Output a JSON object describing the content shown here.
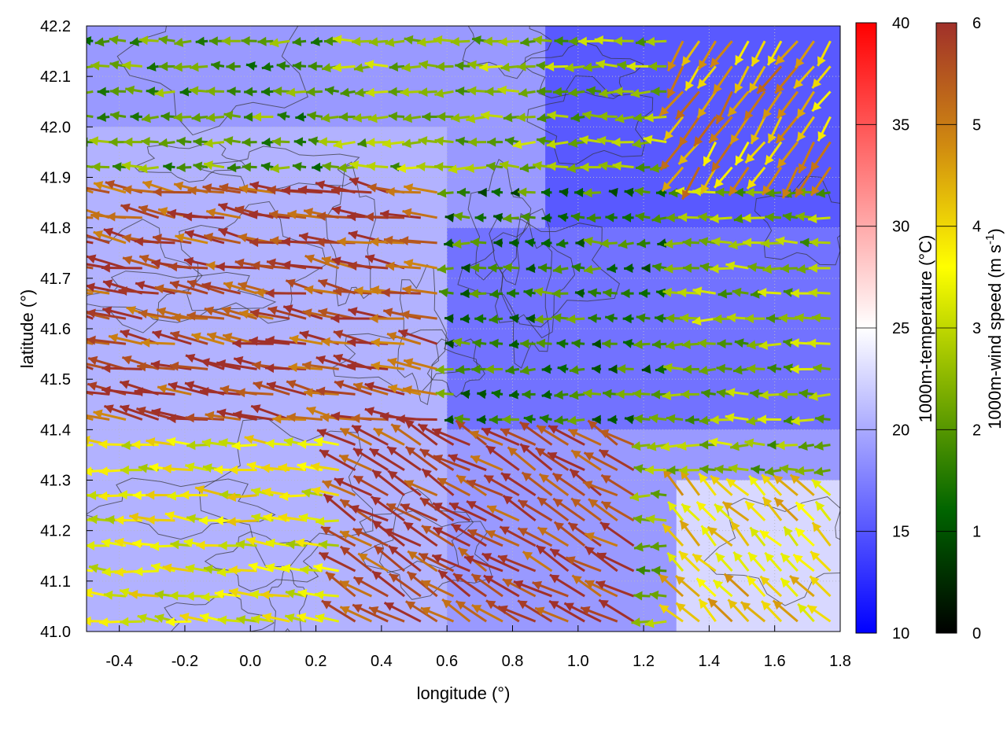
{
  "chart_data": {
    "type": "vector-field",
    "xlabel": "longitude (°)",
    "ylabel": "latitude (°)",
    "xlim": [
      -0.5,
      1.8
    ],
    "ylim": [
      41.0,
      42.2
    ],
    "xticks": [
      "-0.4",
      "-0.2",
      "0.0",
      "0.2",
      "0.4",
      "0.6",
      "0.8",
      "1.0",
      "1.2",
      "1.4",
      "1.6",
      "1.8"
    ],
    "xtick_values": [
      -0.4,
      -0.2,
      0.0,
      0.2,
      0.4,
      0.6,
      0.8,
      1.0,
      1.2,
      1.4,
      1.6,
      1.8
    ],
    "yticks": [
      "41.0",
      "41.1",
      "41.2",
      "41.3",
      "41.4",
      "41.5",
      "41.6",
      "41.7",
      "41.8",
      "41.9",
      "42.0",
      "42.1",
      "42.2"
    ],
    "ytick_values": [
      41.0,
      41.1,
      41.2,
      41.3,
      41.4,
      41.5,
      41.6,
      41.7,
      41.8,
      41.9,
      42.0,
      42.1,
      42.2
    ],
    "grid": true,
    "contours": "terrain elevation contours (unlabeled)",
    "colorbars": [
      {
        "label": "1000m-temperature (°C)",
        "range": [
          10,
          40
        ],
        "ticks": [
          "10",
          "15",
          "20",
          "25",
          "30",
          "35",
          "40"
        ],
        "tick_values": [
          10,
          15,
          20,
          25,
          30,
          35,
          40
        ],
        "colors": [
          "#0000ff",
          "#ffffff",
          "#ff0000"
        ]
      },
      {
        "label": "1000m-wind speed (m s",
        "label_sup": "-1",
        "label_end": ")",
        "range": [
          0,
          6
        ],
        "ticks": [
          "0",
          "1",
          "2",
          "3",
          "4",
          "5",
          "6"
        ],
        "tick_values": [
          0,
          1,
          2,
          3,
          4,
          5,
          6
        ],
        "colors": [
          "#000000",
          "#006400",
          "#80b000",
          "#ffff00",
          "#d08a10",
          "#a0302a"
        ]
      }
    ],
    "temperature_regions": [
      {
        "region": "north-east",
        "lon": [
          0.9,
          1.8
        ],
        "lat": [
          41.8,
          42.2
        ],
        "temp": 14
      },
      {
        "region": "central-east",
        "lon": [
          0.6,
          1.8
        ],
        "lat": [
          41.4,
          41.8
        ],
        "temp": 16
      },
      {
        "region": "west",
        "lon": [
          -0.5,
          0.6
        ],
        "lat": [
          41.0,
          42.0
        ],
        "temp": 21
      },
      {
        "region": "south-east",
        "lon": [
          1.3,
          1.8
        ],
        "lat": [
          41.0,
          41.3
        ],
        "temp": 24
      }
    ],
    "wind_regions": [
      {
        "region": "north-west",
        "lon": [
          -0.5,
          0.3
        ],
        "lat": [
          41.9,
          42.2
        ],
        "speed": 2.0,
        "direction_deg": 180
      },
      {
        "region": "west-central band",
        "lon": [
          -0.5,
          0.6
        ],
        "lat": [
          41.4,
          41.9
        ],
        "speed": 5.6,
        "direction_deg": 170
      },
      {
        "region": "central",
        "lon": [
          0.6,
          1.3
        ],
        "lat": [
          41.4,
          41.9
        ],
        "speed": 1.6,
        "direction_deg": 180
      },
      {
        "region": "north-east",
        "lon": [
          1.3,
          1.8
        ],
        "lat": [
          41.9,
          42.2
        ],
        "speed": 4.5,
        "direction_deg": 235
      },
      {
        "region": "south-central",
        "lon": [
          0.3,
          1.2
        ],
        "lat": [
          41.0,
          41.4
        ],
        "speed": 5.8,
        "direction_deg": 150
      },
      {
        "region": "south-east",
        "lon": [
          1.3,
          1.8
        ],
        "lat": [
          41.0,
          41.3
        ],
        "speed": 4.0,
        "direction_deg": 135
      },
      {
        "region": "south-west",
        "lon": [
          -0.5,
          0.3
        ],
        "lat": [
          41.0,
          41.4
        ],
        "speed": 3.5,
        "direction_deg": 175
      }
    ]
  }
}
